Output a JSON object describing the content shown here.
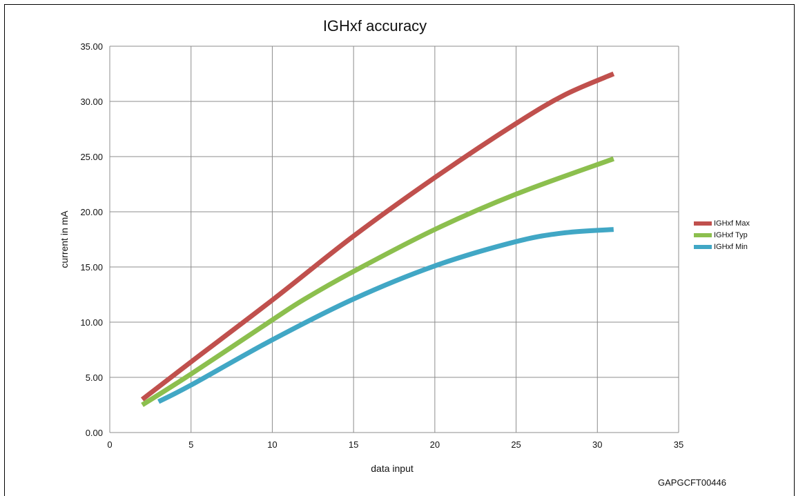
{
  "chart_data": {
    "type": "line",
    "title": "IGHxf accuracy",
    "xlabel": "data input",
    "ylabel": "current in  mA",
    "xlim": [
      0,
      35
    ],
    "ylim": [
      0,
      35
    ],
    "x_ticks": [
      "0",
      "5",
      "10",
      "15",
      "20",
      "25",
      "30",
      "35"
    ],
    "y_ticks": [
      "0.00",
      "5.00",
      "10.00",
      "15.00",
      "20.00",
      "25.00",
      "30.00",
      "35.00"
    ],
    "grid": true,
    "legend_position": "right",
    "series": [
      {
        "name": "IGHxf Max",
        "color": "#c0504d",
        "points": [
          [
            2,
            3.0
          ],
          [
            5,
            6.4
          ],
          [
            10,
            12.0
          ],
          [
            15,
            17.8
          ],
          [
            20,
            23.1
          ],
          [
            25,
            28.0
          ],
          [
            28,
            30.6
          ],
          [
            31,
            32.5
          ]
        ]
      },
      {
        "name": "IGHxf Typ",
        "color": "#8cbf4e",
        "points": [
          [
            2,
            2.5
          ],
          [
            5,
            5.3
          ],
          [
            10,
            10.2
          ],
          [
            12,
            12.1
          ],
          [
            15,
            14.6
          ],
          [
            20,
            18.4
          ],
          [
            25,
            21.6
          ],
          [
            31,
            24.8
          ]
        ]
      },
      {
        "name": "IGHxf Min",
        "color": "#41a7c5",
        "points": [
          [
            3,
            2.8
          ],
          [
            5,
            4.3
          ],
          [
            10,
            8.4
          ],
          [
            15,
            12.1
          ],
          [
            20,
            15.1
          ],
          [
            25,
            17.3
          ],
          [
            28,
            18.1
          ],
          [
            31,
            18.4
          ]
        ]
      }
    ]
  },
  "figure_id": "GAPGCFT00446"
}
